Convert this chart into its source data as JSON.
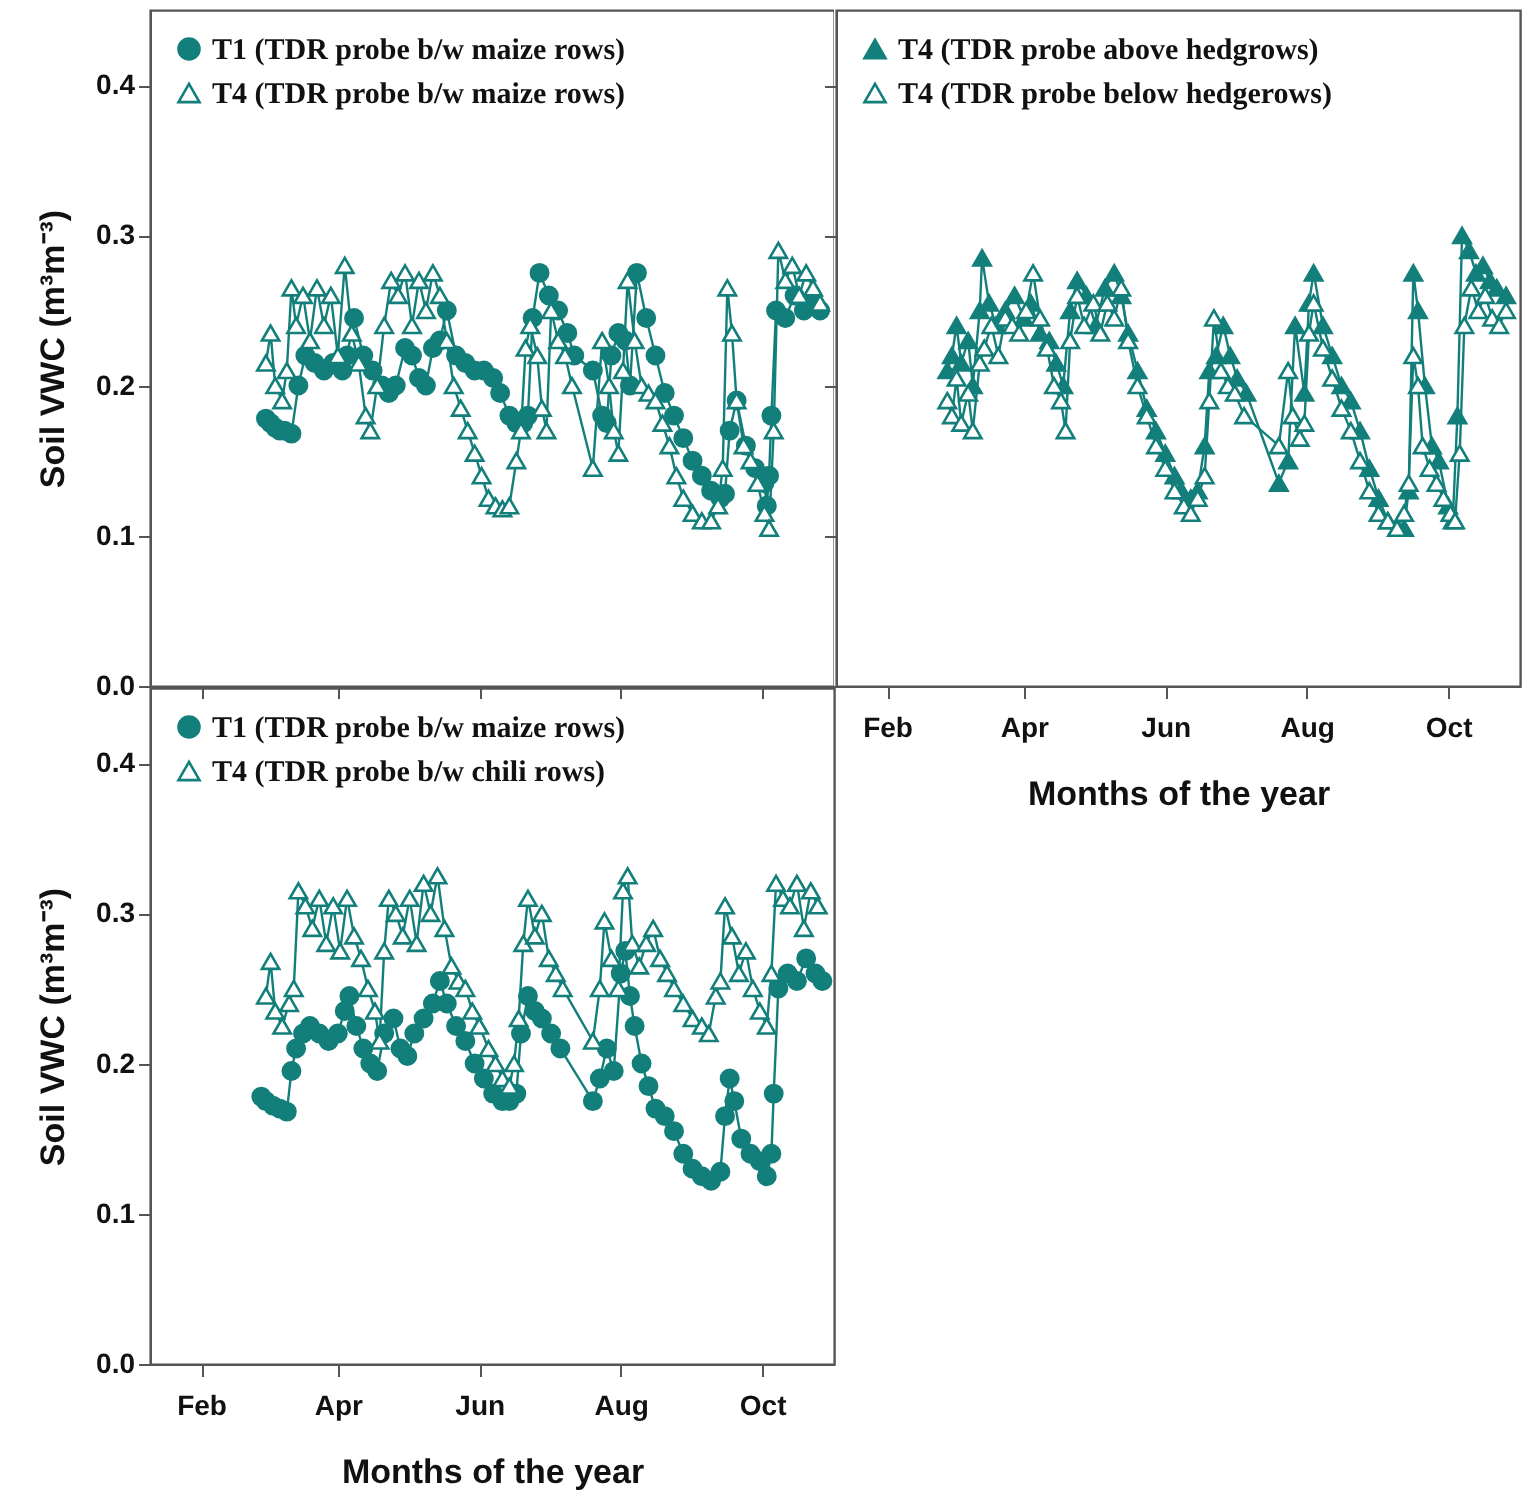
{
  "chart_data": [
    {
      "type": "line",
      "ylabel": "Soil VWC (m³m⁻³)",
      "xlim": [
        "--01-10",
        "--11-01"
      ],
      "xticks": [
        {
          "value": "--02-01",
          "label": null
        },
        {
          "value": "--04-01",
          "label": null
        },
        {
          "value": "--06-01",
          "label": null
        },
        {
          "value": "--08-01",
          "label": null
        },
        {
          "value": "--10-01",
          "label": null
        }
      ],
      "ylim": [
        0,
        0.45
      ],
      "yticks": [
        {
          "value": 0,
          "label": "0.0"
        },
        0.1,
        0.2,
        0.3,
        0.4
      ],
      "legend": "top left",
      "tick_labels": "y",
      "series": [
        {
          "name": "T1 (TDR probe b/w maize rows)",
          "color": "#137f7b",
          "marker": "circle",
          "x": [
            "--03-01",
            "--03-03",
            "--03-05",
            "--03-07",
            "--03-09",
            "--03-12",
            "--03-15",
            "--03-18",
            "--03-22",
            "--03-26",
            "--03-30",
            "--04-03",
            "--04-05",
            "--04-08",
            "--04-12",
            "--04-16",
            "--04-20",
            "--04-23",
            "--04-26",
            "--04-30",
            "--05-03",
            "--05-06",
            "--05-09",
            "--05-12",
            "--05-15",
            "--05-18",
            "--05-22",
            "--05-26",
            "--05-30",
            "--06-03",
            "--06-07",
            "--06-10",
            "--06-14",
            "--06-17",
            "--06-20",
            "--06-22",
            "--06-24",
            "--06-27",
            "--07-01",
            "--07-05",
            "--07-09",
            "--07-12",
            "--07-20",
            "--07-24",
            "--07-26",
            "--07-28",
            "--07-31",
            "--08-03",
            "--08-05",
            "--08-08",
            "--08-12",
            "--08-16",
            "--08-20",
            "--08-24",
            "--08-28",
            "--09-01",
            "--09-05",
            "--09-09",
            "--09-13",
            "--09-15",
            "--09-17",
            "--09-20",
            "--09-24",
            "--09-28",
            "--10-02",
            "--10-03",
            "--10-04",
            "--10-05",
            "--10-07",
            "--10-11",
            "--10-15",
            "--10-19",
            "--10-23",
            "--10-26"
          ],
          "values": [
            0.178,
            0.175,
            0.172,
            0.17,
            0.17,
            0.168,
            0.2,
            0.22,
            0.215,
            0.21,
            0.215,
            0.21,
            0.22,
            0.245,
            0.22,
            0.21,
            0.2,
            0.195,
            0.2,
            0.225,
            0.22,
            0.205,
            0.2,
            0.225,
            0.23,
            0.25,
            0.22,
            0.215,
            0.21,
            0.21,
            0.205,
            0.195,
            0.18,
            0.175,
            0.175,
            0.18,
            0.245,
            0.275,
            0.26,
            0.25,
            0.235,
            0.22,
            0.21,
            0.18,
            0.175,
            0.22,
            0.235,
            0.23,
            0.2,
            0.275,
            0.245,
            0.22,
            0.195,
            0.18,
            0.165,
            0.15,
            0.14,
            0.13,
            0.125,
            0.128,
            0.17,
            0.19,
            0.16,
            0.145,
            0.135,
            0.12,
            0.14,
            0.18,
            0.25,
            0.245,
            0.26,
            0.25,
            0.255,
            0.25
          ]
        },
        {
          "name": "T4 (TDR probe b/w maize rows)",
          "color": "#137f7b",
          "marker": "triangle",
          "x": [
            "--03-01",
            "--03-03",
            "--03-05",
            "--03-08",
            "--03-10",
            "--03-12",
            "--03-14",
            "--03-17",
            "--03-20",
            "--03-23",
            "--03-26",
            "--03-29",
            "--04-01",
            "--04-04",
            "--04-07",
            "--04-10",
            "--04-13",
            "--04-15",
            "--04-18",
            "--04-21",
            "--04-24",
            "--04-27",
            "--04-30",
            "--05-03",
            "--05-06",
            "--05-09",
            "--05-12",
            "--05-15",
            "--05-18",
            "--05-21",
            "--05-24",
            "--05-27",
            "--05-30",
            "--06-02",
            "--06-05",
            "--06-08",
            "--06-11",
            "--06-14",
            "--06-17",
            "--06-19",
            "--06-21",
            "--06-23",
            "--06-26",
            "--06-28",
            "--06-30",
            "--07-02",
            "--07-05",
            "--07-08",
            "--07-11",
            "--07-20",
            "--07-24",
            "--07-27",
            "--07-29",
            "--07-31",
            "--08-02",
            "--08-04",
            "--08-07",
            "--08-10",
            "--08-13",
            "--08-16",
            "--08-19",
            "--08-22",
            "--08-25",
            "--08-28",
            "--09-01",
            "--09-05",
            "--09-09",
            "--09-12",
            "--09-14",
            "--09-16",
            "--09-18",
            "--09-20",
            "--09-23",
            "--09-26",
            "--09-29",
            "--10-02",
            "--10-04",
            "--10-06",
            "--10-08",
            "--10-11",
            "--10-14",
            "--10-17",
            "--10-20",
            "--10-23",
            "--10-26"
          ],
          "values": [
            0.215,
            0.235,
            0.2,
            0.19,
            0.21,
            0.265,
            0.24,
            0.26,
            0.23,
            0.265,
            0.24,
            0.26,
            0.22,
            0.28,
            0.235,
            0.215,
            0.18,
            0.17,
            0.2,
            0.24,
            0.27,
            0.26,
            0.275,
            0.24,
            0.27,
            0.25,
            0.275,
            0.26,
            0.23,
            0.2,
            0.185,
            0.17,
            0.155,
            0.14,
            0.125,
            0.12,
            0.118,
            0.12,
            0.15,
            0.17,
            0.225,
            0.24,
            0.22,
            0.185,
            0.17,
            0.25,
            0.23,
            0.22,
            0.2,
            0.145,
            0.23,
            0.2,
            0.17,
            0.155,
            0.21,
            0.27,
            0.23,
            0.2,
            0.195,
            0.19,
            0.175,
            0.16,
            0.14,
            0.125,
            0.115,
            0.11,
            0.11,
            0.12,
            0.145,
            0.265,
            0.235,
            0.19,
            0.16,
            0.15,
            0.135,
            0.115,
            0.105,
            0.17,
            0.29,
            0.27,
            0.28,
            0.26,
            0.275,
            0.265,
            0.255
          ]
        }
      ]
    },
    {
      "type": "line",
      "xlabel": "Months of the year",
      "xlim": [
        "--01-10",
        "--11-01"
      ],
      "xticks": [
        {
          "value": "--02-01",
          "label": "Feb"
        },
        {
          "value": "--04-01",
          "label": "Apr"
        },
        {
          "value": "--06-01",
          "label": "Jun"
        },
        {
          "value": "--08-01",
          "label": "Aug"
        },
        {
          "value": "--10-01",
          "label": "Oct"
        }
      ],
      "ylim": [
        0,
        0.45
      ],
      "yticks": [
        0,
        0.1,
        0.2,
        0.3,
        0.4
      ],
      "legend": "top left",
      "tick_labels": "x",
      "series": [
        {
          "name": "T4 (TDR probe above hedgrows)",
          "color": "#137f7b",
          "marker": "triangle",
          "x": [
            "--02-27",
            "--03-01",
            "--03-03",
            "--03-05",
            "--03-08",
            "--03-10",
            "--03-13",
            "--03-14",
            "--03-17",
            "--03-20",
            "--03-24",
            "--03-28",
            "--04-01",
            "--04-04",
            "--04-08",
            "--04-12",
            "--04-15",
            "--04-18",
            "--04-21",
            "--04-24",
            "--04-28",
            "--05-02",
            "--05-06",
            "--05-10",
            "--05-13",
            "--05-16",
            "--05-20",
            "--05-24",
            "--05-28",
            "--06-01",
            "--06-05",
            "--06-08",
            "--06-12",
            "--06-15",
            "--06-18",
            "--06-20",
            "--06-23",
            "--06-26",
            "--06-29",
            "--07-02",
            "--07-06",
            "--07-20",
            "--07-24",
            "--07-27",
            "--07-31",
            "--08-02",
            "--08-04",
            "--08-08",
            "--08-12",
            "--08-16",
            "--08-20",
            "--08-24",
            "--08-28",
            "--09-01",
            "--09-05",
            "--09-09",
            "--09-12",
            "--09-14",
            "--09-16",
            "--09-18",
            "--09-21",
            "--09-24",
            "--09-27",
            "--10-01",
            "--10-03",
            "--10-05",
            "--10-07",
            "--10-10",
            "--10-13",
            "--10-16",
            "--10-19",
            "--10-22",
            "--10-26"
          ],
          "values": [
            0.21,
            0.22,
            0.24,
            0.215,
            0.23,
            0.2,
            0.25,
            0.285,
            0.255,
            0.24,
            0.25,
            0.26,
            0.245,
            0.255,
            0.235,
            0.23,
            0.215,
            0.2,
            0.25,
            0.27,
            0.26,
            0.24,
            0.265,
            0.275,
            0.26,
            0.235,
            0.21,
            0.185,
            0.17,
            0.155,
            0.14,
            0.13,
            0.125,
            0.13,
            0.16,
            0.21,
            0.22,
            0.24,
            0.22,
            0.205,
            0.195,
            0.135,
            0.15,
            0.24,
            0.195,
            0.255,
            0.275,
            0.24,
            0.22,
            0.2,
            0.19,
            0.17,
            0.145,
            0.125,
            0.11,
            0.105,
            0.105,
            0.13,
            0.275,
            0.25,
            0.2,
            0.16,
            0.15,
            0.12,
            0.11,
            0.18,
            0.3,
            0.29,
            0.275,
            0.28,
            0.27,
            0.265,
            0.26
          ]
        },
        {
          "name": "T4 (TDR probe below hedgerows)",
          "color": "#137f7b",
          "marker": "triangle",
          "x": [
            "--02-27",
            "--03-01",
            "--03-03",
            "--03-05",
            "--03-08",
            "--03-10",
            "--03-13",
            "--03-15",
            "--03-18",
            "--03-21",
            "--03-24",
            "--03-27",
            "--03-30",
            "--04-02",
            "--04-05",
            "--04-08",
            "--04-11",
            "--04-14",
            "--04-17",
            "--04-19",
            "--04-21",
            "--04-24",
            "--04-27",
            "--05-01",
            "--05-04",
            "--05-07",
            "--05-10",
            "--05-13",
            "--05-16",
            "--05-20",
            "--05-24",
            "--05-28",
            "--06-01",
            "--06-05",
            "--06-09",
            "--06-12",
            "--06-15",
            "--06-18",
            "--06-20",
            "--06-22",
            "--06-25",
            "--06-28",
            "--07-01",
            "--07-05",
            "--07-20",
            "--07-24",
            "--07-26",
            "--07-29",
            "--07-31",
            "--08-02",
            "--08-04",
            "--08-08",
            "--08-12",
            "--08-16",
            "--08-20",
            "--08-24",
            "--08-28",
            "--09-01",
            "--09-05",
            "--09-09",
            "--09-12",
            "--09-14",
            "--09-16",
            "--09-18",
            "--09-20",
            "--09-23",
            "--09-26",
            "--09-29",
            "--10-02",
            "--10-04",
            "--10-06",
            "--10-08",
            "--10-11",
            "--10-14",
            "--10-17",
            "--10-20",
            "--10-23",
            "--10-26"
          ],
          "values": [
            0.19,
            0.18,
            0.205,
            0.175,
            0.195,
            0.17,
            0.215,
            0.225,
            0.24,
            0.22,
            0.245,
            0.24,
            0.235,
            0.25,
            0.275,
            0.245,
            0.225,
            0.2,
            0.19,
            0.17,
            0.23,
            0.26,
            0.24,
            0.255,
            0.235,
            0.255,
            0.245,
            0.265,
            0.23,
            0.2,
            0.18,
            0.16,
            0.145,
            0.13,
            0.12,
            0.115,
            0.125,
            0.14,
            0.19,
            0.245,
            0.21,
            0.2,
            0.195,
            0.18,
            0.16,
            0.21,
            0.18,
            0.165,
            0.175,
            0.235,
            0.255,
            0.225,
            0.205,
            0.185,
            0.17,
            0.15,
            0.13,
            0.115,
            0.11,
            0.105,
            0.115,
            0.135,
            0.22,
            0.2,
            0.16,
            0.145,
            0.135,
            0.125,
            0.115,
            0.11,
            0.155,
            0.24,
            0.265,
            0.25,
            0.26,
            0.245,
            0.24,
            0.25
          ]
        }
      ]
    },
    {
      "type": "line",
      "ylabel": "Soil VWC (m³m⁻³)",
      "xlabel": "Months of the year",
      "xlim": [
        "--01-10",
        "--11-01"
      ],
      "xticks": [
        {
          "value": "--02-01",
          "label": "Feb"
        },
        {
          "value": "--04-01",
          "label": "Apr"
        },
        {
          "value": "--06-01",
          "label": "Jun"
        },
        {
          "value": "--08-01",
          "label": "Aug"
        },
        {
          "value": "--10-01",
          "label": "Oct"
        }
      ],
      "ylim": [
        0,
        0.45
      ],
      "yticks": [
        {
          "value": 0,
          "label": "0.0"
        },
        0.1,
        0.2,
        0.3,
        0.4
      ],
      "legend": "top left",
      "series": [
        {
          "name": "T1 (TDR probe b/w maize rows)",
          "color": "#137f7b",
          "marker": "circle",
          "x": [
            "--02-27",
            "--03-01",
            "--03-04",
            "--03-07",
            "--03-10",
            "--03-12",
            "--03-14",
            "--03-17",
            "--03-20",
            "--03-24",
            "--03-28",
            "--04-01",
            "--04-04",
            "--04-06",
            "--04-09",
            "--04-12",
            "--04-15",
            "--04-18",
            "--04-21",
            "--04-25",
            "--04-28",
            "--05-01",
            "--05-04",
            "--05-08",
            "--05-12",
            "--05-15",
            "--05-18",
            "--05-22",
            "--05-26",
            "--05-30",
            "--06-03",
            "--06-07",
            "--06-11",
            "--06-14",
            "--06-17",
            "--06-19",
            "--06-22",
            "--06-25",
            "--06-28",
            "--07-02",
            "--07-06",
            "--07-20",
            "--07-23",
            "--07-26",
            "--07-29",
            "--08-01",
            "--08-03",
            "--08-05",
            "--08-07",
            "--08-10",
            "--08-13",
            "--08-16",
            "--08-20",
            "--08-24",
            "--08-28",
            "--09-01",
            "--09-05",
            "--09-09",
            "--09-13",
            "--09-15",
            "--09-17",
            "--09-19",
            "--09-22",
            "--09-26",
            "--09-30",
            "--10-03",
            "--10-05",
            "--10-06",
            "--10-08",
            "--10-12",
            "--10-16",
            "--10-20",
            "--10-24",
            "--10-27"
          ],
          "values": [
            0.178,
            0.175,
            0.172,
            0.17,
            0.168,
            0.195,
            0.21,
            0.22,
            0.225,
            0.22,
            0.215,
            0.22,
            0.235,
            0.245,
            0.225,
            0.21,
            0.2,
            0.195,
            0.22,
            0.23,
            0.21,
            0.205,
            0.22,
            0.23,
            0.24,
            0.255,
            0.24,
            0.225,
            0.215,
            0.2,
            0.19,
            0.18,
            0.175,
            0.175,
            0.18,
            0.22,
            0.245,
            0.235,
            0.23,
            0.22,
            0.21,
            0.175,
            0.19,
            0.21,
            0.195,
            0.26,
            0.275,
            0.245,
            0.225,
            0.2,
            0.185,
            0.17,
            0.165,
            0.155,
            0.14,
            0.13,
            0.125,
            0.122,
            0.128,
            0.165,
            0.19,
            0.175,
            0.15,
            0.14,
            0.135,
            0.125,
            0.14,
            0.18,
            0.25,
            0.26,
            0.255,
            0.27,
            0.26,
            0.255
          ]
        },
        {
          "name": "T4 (TDR probe b/w chili rows)",
          "color": "#137f7b",
          "marker": "triangle",
          "x": [
            "--03-01",
            "--03-03",
            "--03-05",
            "--03-08",
            "--03-11",
            "--03-13",
            "--03-15",
            "--03-18",
            "--03-21",
            "--03-24",
            "--03-27",
            "--03-30",
            "--04-02",
            "--04-05",
            "--04-08",
            "--04-11",
            "--04-14",
            "--04-17",
            "--04-19",
            "--04-21",
            "--04-23",
            "--04-26",
            "--04-29",
            "--05-02",
            "--05-05",
            "--05-08",
            "--05-11",
            "--05-14",
            "--05-17",
            "--05-20",
            "--05-23",
            "--05-26",
            "--05-29",
            "--06-01",
            "--06-05",
            "--06-08",
            "--06-11",
            "--06-14",
            "--06-16",
            "--06-18",
            "--06-20",
            "--06-22",
            "--06-25",
            "--06-28",
            "--07-01",
            "--07-04",
            "--07-07",
            "--07-20",
            "--07-23",
            "--07-25",
            "--07-28",
            "--07-31",
            "--08-02",
            "--08-04",
            "--08-06",
            "--08-09",
            "--08-12",
            "--08-15",
            "--08-18",
            "--08-21",
            "--08-24",
            "--08-28",
            "--09-01",
            "--09-05",
            "--09-08",
            "--09-11",
            "--09-13",
            "--09-15",
            "--09-18",
            "--09-21",
            "--09-24",
            "--09-27",
            "--09-30",
            "--10-03",
            "--10-05",
            "--10-07",
            "--10-10",
            "--10-13",
            "--10-16",
            "--10-19",
            "--10-22",
            "--10-25"
          ],
          "values": [
            0.245,
            0.268,
            0.235,
            0.225,
            0.24,
            0.25,
            0.315,
            0.305,
            0.29,
            0.31,
            0.28,
            0.305,
            0.275,
            0.31,
            0.285,
            0.27,
            0.25,
            0.235,
            0.215,
            0.275,
            0.31,
            0.3,
            0.285,
            0.31,
            0.28,
            0.32,
            0.3,
            0.325,
            0.29,
            0.265,
            0.255,
            0.25,
            0.235,
            0.225,
            0.21,
            0.2,
            0.19,
            0.185,
            0.2,
            0.23,
            0.28,
            0.31,
            0.285,
            0.3,
            0.27,
            0.26,
            0.25,
            0.215,
            0.25,
            0.295,
            0.27,
            0.25,
            0.315,
            0.325,
            0.28,
            0.265,
            0.28,
            0.29,
            0.27,
            0.26,
            0.25,
            0.24,
            0.23,
            0.225,
            0.22,
            0.245,
            0.255,
            0.305,
            0.285,
            0.26,
            0.275,
            0.25,
            0.235,
            0.225,
            0.26,
            0.32,
            0.31,
            0.305,
            0.32,
            0.29,
            0.315,
            0.305
          ]
        }
      ]
    }
  ]
}
